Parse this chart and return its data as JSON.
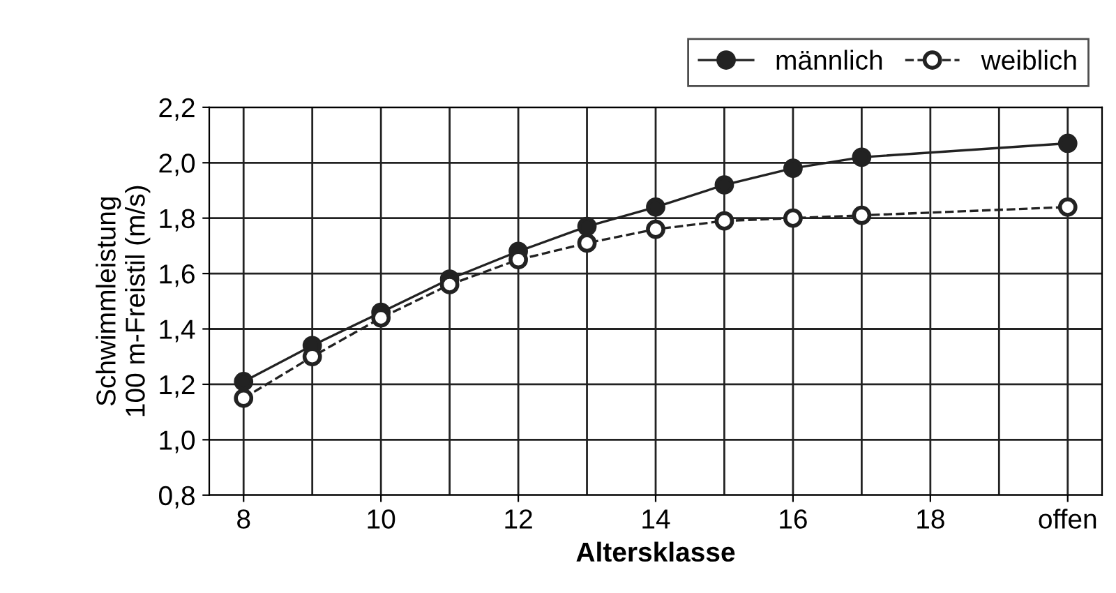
{
  "chart_data": {
    "type": "line",
    "xlabel": "Altersklasse",
    "ylabel": "Schwimmleistung\n100 m-Freistil (m/s)",
    "x": [
      8,
      9,
      10,
      11,
      12,
      13,
      14,
      15,
      16,
      17,
      20
    ],
    "xlim": [
      7.5,
      20.5
    ],
    "xticks": [
      8,
      10,
      12,
      14,
      16,
      18,
      {
        "value": 20,
        "label": "offen"
      }
    ],
    "ylim": [
      0.8,
      2.2
    ],
    "yticks": [
      {
        "value": 0.8,
        "label": "0,8"
      },
      {
        "value": 1.0,
        "label": "1,0"
      },
      {
        "value": 1.2,
        "label": "1,2"
      },
      {
        "value": 1.4,
        "label": "1,4"
      },
      {
        "value": 1.6,
        "label": "1,6"
      },
      {
        "value": 1.8,
        "label": "1,8"
      },
      {
        "value": 2.0,
        "label": "2,0"
      },
      {
        "value": 2.2,
        "label": "2,2"
      }
    ],
    "grid": true,
    "legend": "top right",
    "marker": "circle",
    "series": [
      {
        "name": "männlich",
        "color": "#222222",
        "line_style": "solid",
        "values": [
          1.21,
          1.34,
          1.46,
          1.58,
          1.68,
          1.77,
          1.84,
          1.92,
          1.98,
          2.02,
          2.07
        ]
      },
      {
        "name": "weiblich",
        "color": "#222222",
        "line_style": "dashed",
        "values": [
          1.15,
          1.3,
          1.44,
          1.56,
          1.65,
          1.71,
          1.76,
          1.79,
          1.8,
          1.81,
          1.84
        ]
      }
    ]
  }
}
